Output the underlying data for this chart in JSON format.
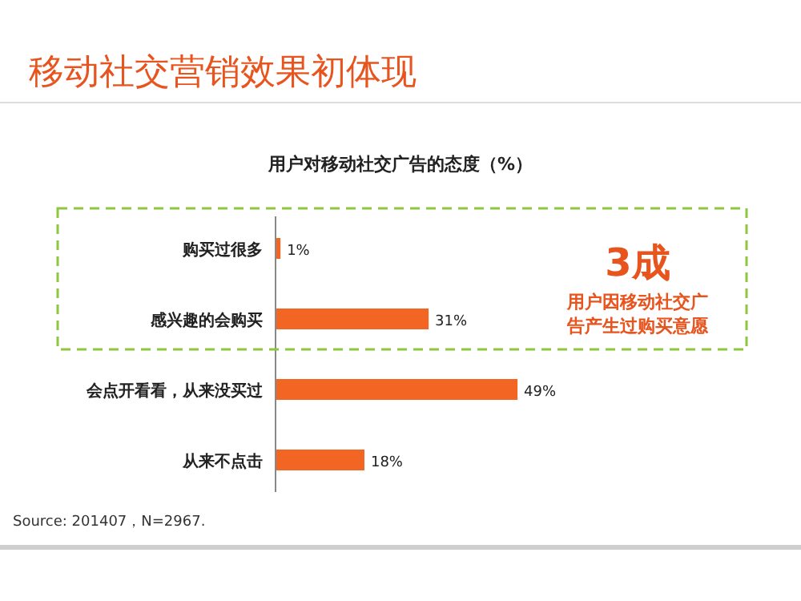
{
  "chart_data": {
    "type": "bar",
    "orientation": "horizontal",
    "title": "移动社交营销效果初体现",
    "subtitle": "用户对移动社交广告的态度（%）",
    "categories": [
      "购买过很多",
      "感兴趣的会购买",
      "会点开看看，从来没买过",
      "从来不点击"
    ],
    "values": [
      1,
      31,
      49,
      18
    ],
    "color": "#f26522",
    "data_labels": true,
    "value_labels": [
      "1%",
      "31%",
      "49%",
      "18%"
    ],
    "annotations": [
      "3成",
      "用户因移动社交广告产生过购买意愿",
      "Source: 201407，N=2967."
    ]
  }
}
